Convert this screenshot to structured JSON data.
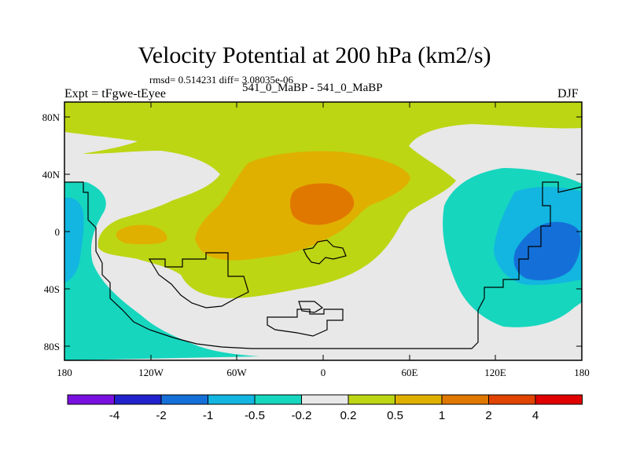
{
  "title": "Velocity Potential at 200 hPa (km2/s)",
  "stats": "rmsd= 0.514231 diff= 3.08035e-06",
  "experiment": "Expt = tFgwe-tEyee",
  "subtitle": "541_0_MaBP - 541_0_MaBP",
  "season": "DJF",
  "map": {
    "lat_ticks": [
      "80N",
      "40N",
      "0",
      "40S",
      "80S"
    ],
    "lon_ticks": [
      "180",
      "120W",
      "60W",
      "0",
      "60E",
      "120E",
      "180"
    ]
  },
  "colorbar": {
    "labels": [
      "-4",
      "-2",
      "-1",
      "-0.5",
      "-0.2",
      "0.2",
      "0.5",
      "1",
      "2",
      "4"
    ],
    "colors": [
      "#7a10e0",
      "#2222cc",
      "#1470d8",
      "#12b6e0",
      "#16d6be",
      "#e8e8e8",
      "#bcd614",
      "#e0b000",
      "#e07800",
      "#e04400",
      "#e00000"
    ]
  }
}
